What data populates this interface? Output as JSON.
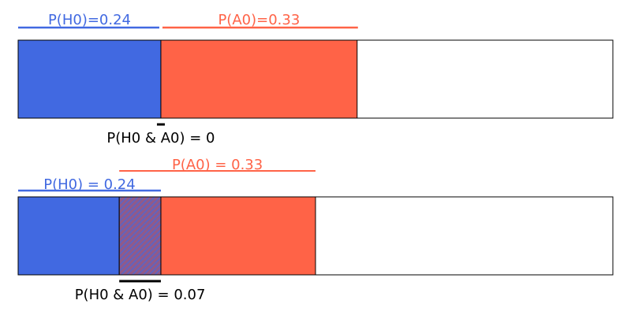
{
  "colors": {
    "h0": "#4169e1",
    "a0": "#ff6347",
    "outline": "#000000",
    "hatch_bg": "#8e5a8c",
    "hatch_line": "#4169e1"
  },
  "panel1": {
    "p_h0": 0.24,
    "p_a0": 0.33,
    "p_overlap": 0,
    "label_h0": "P(H0)=0.24",
    "label_a0": "P(A0)=0.33",
    "label_overlap": "P(H0 & A0) = 0"
  },
  "panel2": {
    "p_h0": 0.24,
    "p_a0": 0.33,
    "p_overlap": 0.07,
    "label_h0": "P(H0) = 0.24",
    "label_a0": "P(A0) = 0.33",
    "label_overlap": "P(H0 & A0) = 0.07"
  }
}
